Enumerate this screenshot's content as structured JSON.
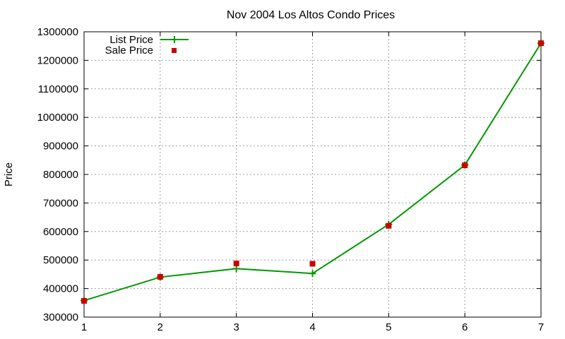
{
  "chart_data": {
    "type": "line",
    "title": "Nov 2004 Los Altos Condo Prices",
    "xlabel": "",
    "ylabel": "Price",
    "xlim": [
      1,
      7
    ],
    "ylim": [
      300000,
      1300000
    ],
    "x": [
      1,
      2,
      3,
      4,
      5,
      6,
      7
    ],
    "x_ticks": [
      1,
      2,
      3,
      4,
      5,
      6,
      7
    ],
    "y_ticks": [
      300000,
      400000,
      500000,
      600000,
      700000,
      800000,
      900000,
      1000000,
      1100000,
      1200000,
      1300000
    ],
    "grid": true,
    "legend_position": "top-left",
    "series": [
      {
        "name": "List Price",
        "style": "line-with-plus-markers",
        "color": "#009900",
        "values": [
          358000,
          440000,
          470000,
          453000,
          625000,
          833000,
          1260000
        ]
      },
      {
        "name": "Sale Price",
        "style": "square-markers",
        "color": "#cc0000",
        "values": [
          357000,
          441000,
          488000,
          487000,
          620000,
          832000,
          1260000
        ]
      }
    ]
  }
}
